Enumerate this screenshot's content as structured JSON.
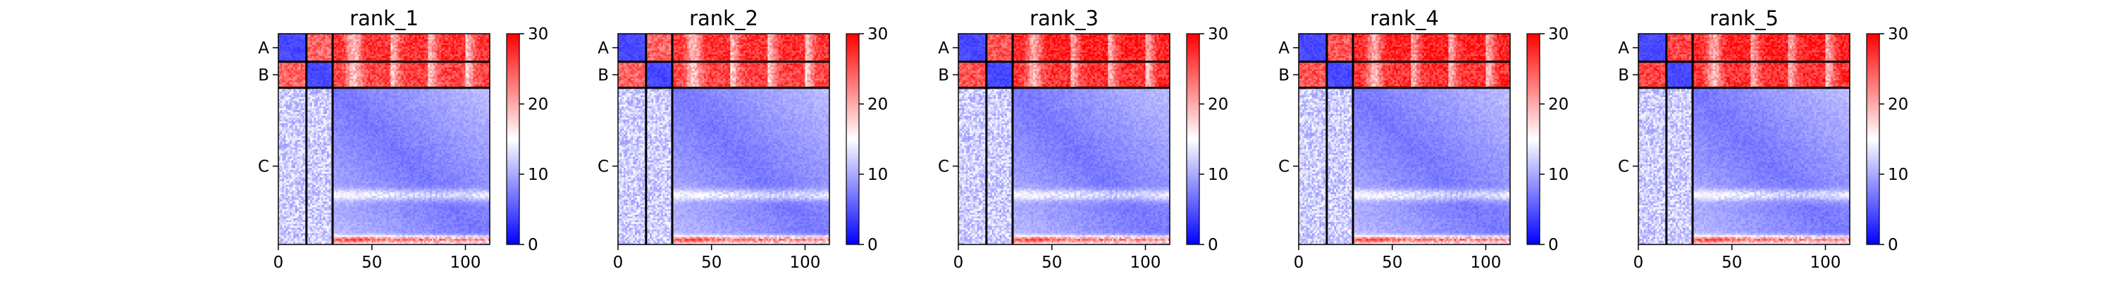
{
  "chart_data": [
    {
      "type": "heatmap",
      "title": "rank_1",
      "chains": [
        "A",
        "B",
        "C"
      ],
      "chain_boundaries": [
        0,
        15,
        29,
        113
      ],
      "x_ticks": [
        0,
        50,
        100
      ],
      "xlim": [
        0,
        113
      ],
      "colorbar": {
        "min": 0,
        "max": 30,
        "ticks": [
          0,
          10,
          20,
          30
        ],
        "colormap": "bwr"
      },
      "intra_chain_pae": {
        "A": 3,
        "B": 3,
        "C": 6
      },
      "inter_chain_pae": {
        "A-B": 24,
        "A-C": 27,
        "B-C": 26,
        "C-A": 12,
        "C-B": 12
      },
      "grid": false
    },
    {
      "type": "heatmap",
      "title": "rank_2",
      "chains": [
        "A",
        "B",
        "C"
      ],
      "chain_boundaries": [
        0,
        15,
        29,
        113
      ],
      "x_ticks": [
        0,
        50,
        100
      ],
      "xlim": [
        0,
        113
      ],
      "colorbar": {
        "min": 0,
        "max": 30,
        "ticks": [
          0,
          10,
          20,
          30
        ],
        "colormap": "bwr"
      },
      "intra_chain_pae": {
        "A": 3,
        "B": 3,
        "C": 6
      },
      "inter_chain_pae": {
        "A-B": 24,
        "A-C": 27,
        "B-C": 26,
        "C-A": 12,
        "C-B": 12
      },
      "grid": false
    },
    {
      "type": "heatmap",
      "title": "rank_3",
      "chains": [
        "A",
        "B",
        "C"
      ],
      "chain_boundaries": [
        0,
        15,
        29,
        113
      ],
      "x_ticks": [
        0,
        50,
        100
      ],
      "xlim": [
        0,
        113
      ],
      "colorbar": {
        "min": 0,
        "max": 30,
        "ticks": [
          0,
          10,
          20,
          30
        ],
        "colormap": "bwr"
      },
      "intra_chain_pae": {
        "A": 3,
        "B": 3,
        "C": 6
      },
      "inter_chain_pae": {
        "A-B": 25,
        "A-C": 28,
        "B-C": 27,
        "C-A": 12,
        "C-B": 12
      },
      "grid": false
    },
    {
      "type": "heatmap",
      "title": "rank_4",
      "chains": [
        "A",
        "B",
        "C"
      ],
      "chain_boundaries": [
        0,
        15,
        29,
        113
      ],
      "x_ticks": [
        0,
        50,
        100
      ],
      "xlim": [
        0,
        113
      ],
      "colorbar": {
        "min": 0,
        "max": 30,
        "ticks": [
          0,
          10,
          20,
          30
        ],
        "colormap": "bwr"
      },
      "intra_chain_pae": {
        "A": 3,
        "B": 3,
        "C": 6
      },
      "inter_chain_pae": {
        "A-B": 25,
        "A-C": 28,
        "B-C": 27,
        "C-A": 12,
        "C-B": 12
      },
      "grid": false
    },
    {
      "type": "heatmap",
      "title": "rank_5",
      "chains": [
        "A",
        "B",
        "C"
      ],
      "chain_boundaries": [
        0,
        15,
        29,
        113
      ],
      "x_ticks": [
        0,
        50,
        100
      ],
      "xlim": [
        0,
        113
      ],
      "colorbar": {
        "min": 0,
        "max": 30,
        "ticks": [
          0,
          10,
          20,
          30
        ],
        "colormap": "bwr"
      },
      "intra_chain_pae": {
        "A": 3,
        "B": 3,
        "C": 6
      },
      "inter_chain_pae": {
        "A-B": 26,
        "A-C": 28,
        "B-C": 27,
        "C-A": 12,
        "C-B": 12
      },
      "grid": false
    }
  ]
}
